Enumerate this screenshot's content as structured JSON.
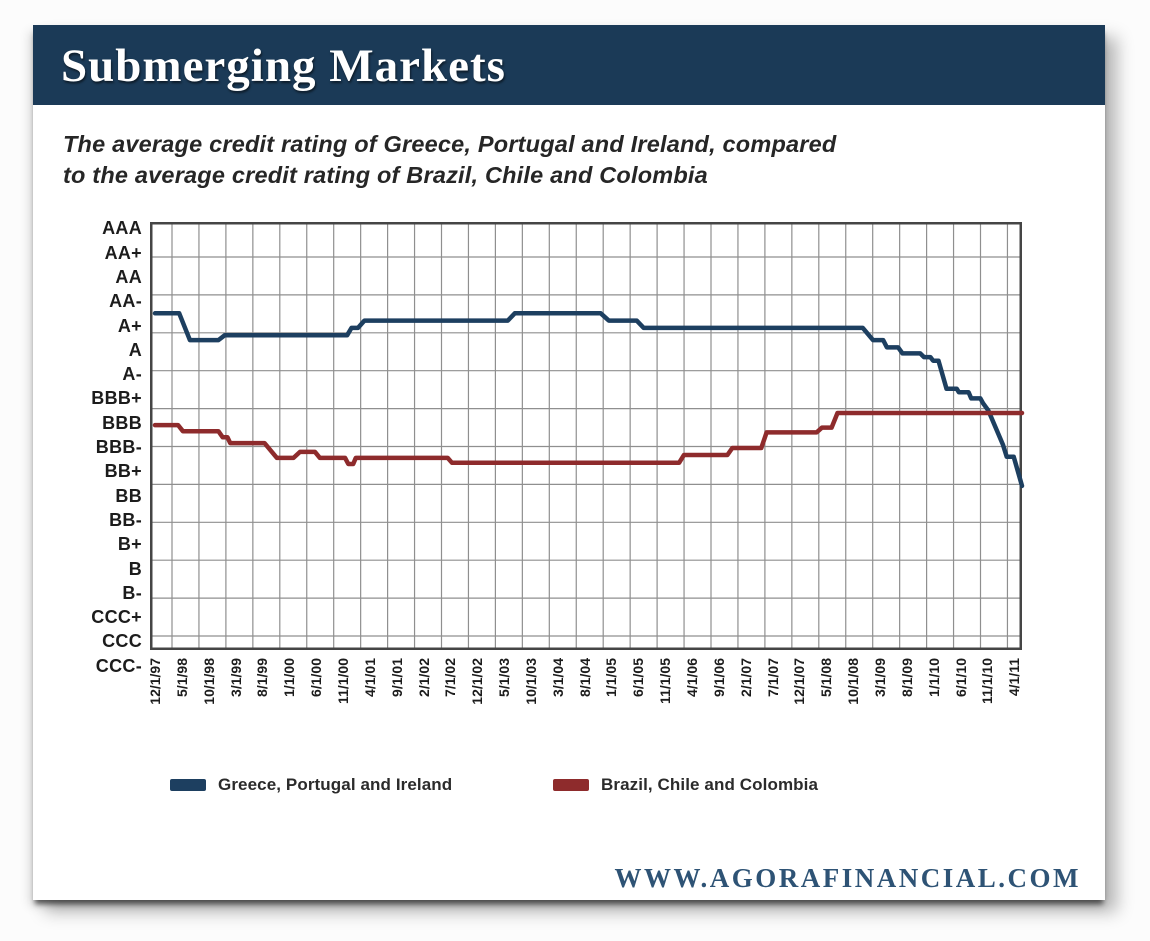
{
  "header": {
    "title": "Submerging Markets"
  },
  "subtitle": {
    "line1": "The average credit rating of Greece, Portugal and Ireland, compared",
    "line2": "to the average credit rating of Brazil, Chile and Colombia"
  },
  "legend": {
    "series1": "Greece, Portugal and Ireland",
    "series2": "Brazil, Chile and Colombia"
  },
  "footer": {
    "url": "WWW.AGORAFINANCIAL.COM"
  },
  "colors": {
    "header_bar": "#1b3a57",
    "series1": "#1d3f60",
    "series2": "#8e2b2c",
    "grid": "#8f8f8f",
    "plot_border": "#454545",
    "axis_text": "#1c1c1c",
    "url_text": "#2e5375"
  },
  "chart_data": {
    "type": "line",
    "title": "Submerging Markets",
    "subtitle": "The average credit rating of Greece, Portugal and Ireland, compared to the average credit rating of Brazil, Chile and Colombia",
    "grid": true,
    "legend_position": "bottom",
    "y_axis": {
      "labels_top_to_bottom": [
        "AAA",
        "AA+",
        "AA",
        "AA-",
        "A+",
        "A",
        "A-",
        "BBB+",
        "BBB",
        "BBB-",
        "BB+",
        "BB",
        "BB-",
        "B+",
        "B",
        "B-",
        "CCC+",
        "CCC",
        "CCC-"
      ],
      "numeric_scale": "CCC- = 1 up to AAA = 19, one unit per rating notch",
      "range_top_value": 19,
      "range_bottom_value": 1
    },
    "x_axis": {
      "unit": "months since 12/1/1997 (one tick every 5 months)",
      "tick_labels": [
        "12/1/97",
        "5/1/98",
        "10/1/98",
        "3/1/99",
        "8/1/99",
        "1/1/00",
        "6/1/00",
        "11/1/00",
        "4/1/01",
        "9/1/01",
        "2/1/02",
        "7/1/02",
        "12/1/02",
        "5/1/03",
        "10/1/03",
        "3/1/04",
        "8/1/04",
        "1/1/05",
        "6/1/05",
        "11/1/05",
        "4/1/06",
        "9/1/06",
        "2/1/07",
        "7/1/07",
        "12/1/07",
        "5/1/08",
        "10/1/08",
        "3/1/09",
        "8/1/09",
        "1/1/10",
        "6/1/10",
        "11/1/10",
        "4/1/11"
      ]
    },
    "series": [
      {
        "name": "Greece, Portugal and Ireland",
        "color": "#1d3f60",
        "points_month_rating": [
          [
            0,
            15.5
          ],
          [
            4.5,
            15.5
          ],
          [
            6.5,
            14.4
          ],
          [
            11.8,
            14.4
          ],
          [
            13,
            14.6
          ],
          [
            35.8,
            14.6
          ],
          [
            36.6,
            14.9
          ],
          [
            37.8,
            14.9
          ],
          [
            39,
            15.2
          ],
          [
            65.7,
            15.2
          ],
          [
            67,
            15.5
          ],
          [
            83,
            15.5
          ],
          [
            84.5,
            15.2
          ],
          [
            89.7,
            15.2
          ],
          [
            91,
            14.9
          ],
          [
            131.8,
            14.9
          ],
          [
            133.7,
            14.4
          ],
          [
            135.6,
            14.4
          ],
          [
            136.3,
            14.1
          ],
          [
            138.4,
            14.1
          ],
          [
            139.2,
            13.85
          ],
          [
            142.5,
            13.85
          ],
          [
            143.2,
            13.7
          ],
          [
            144.4,
            13.7
          ],
          [
            144.9,
            13.55
          ],
          [
            145.9,
            13.55
          ],
          [
            147.4,
            12.4
          ],
          [
            149.3,
            12.4
          ],
          [
            149.7,
            12.25
          ],
          [
            151.5,
            12.25
          ],
          [
            152,
            12.0
          ],
          [
            153.7,
            12.0
          ],
          [
            154.2,
            11.8
          ],
          [
            155.2,
            11.5
          ],
          [
            157.9,
            10.1
          ],
          [
            158.6,
            9.6
          ],
          [
            159.9,
            9.6
          ],
          [
            162.2,
            8.4
          ]
        ]
      },
      {
        "name": "Brazil, Chile and Colombia",
        "color": "#8e2b2c",
        "points_month_rating": [
          [
            0,
            10.9
          ],
          [
            4.3,
            10.9
          ],
          [
            5.2,
            10.65
          ],
          [
            11.8,
            10.65
          ],
          [
            12.6,
            10.4
          ],
          [
            13.5,
            10.4
          ],
          [
            14,
            10.16
          ],
          [
            20.4,
            10.16
          ],
          [
            22.7,
            9.55
          ],
          [
            25.8,
            9.55
          ],
          [
            27,
            9.8
          ],
          [
            29.8,
            9.8
          ],
          [
            30.7,
            9.55
          ],
          [
            35.4,
            9.55
          ],
          [
            36,
            9.3
          ],
          [
            36.9,
            9.3
          ],
          [
            37.4,
            9.55
          ],
          [
            54.5,
            9.55
          ],
          [
            55.3,
            9.35
          ],
          [
            97.6,
            9.35
          ],
          [
            98.5,
            9.67
          ],
          [
            106.6,
            9.67
          ],
          [
            107.5,
            9.96
          ],
          [
            112.9,
            9.96
          ],
          [
            113.9,
            10.6
          ],
          [
            123.2,
            10.6
          ],
          [
            124.2,
            10.8
          ],
          [
            126,
            10.8
          ],
          [
            127.1,
            11.4
          ],
          [
            162.5,
            11.4
          ]
        ]
      }
    ]
  }
}
